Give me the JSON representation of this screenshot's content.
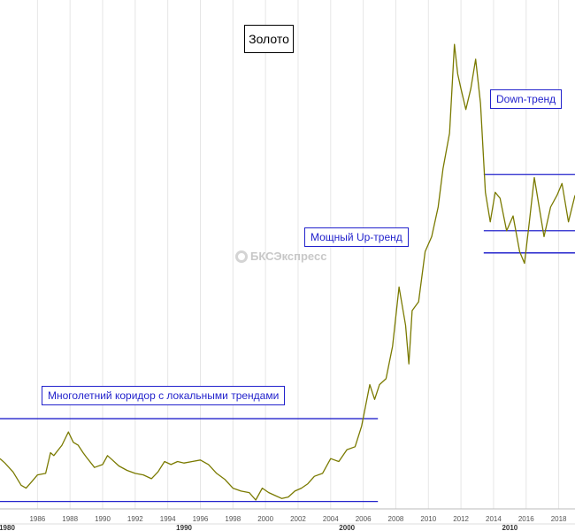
{
  "colors": {
    "price_line": "#7a7a00",
    "channel_lines": "#2222cc",
    "annotation_text": "#2222cc",
    "grid": "#e6e6e6",
    "watermark": "#c8c8c8"
  },
  "title": "Золото",
  "watermark": "БКСЭкспресс",
  "annotations": {
    "corridor": "Многолетний коридор с локальными трендами",
    "uptrend": "Мощный Up-тренд",
    "downtrend": "Down-тренд"
  },
  "chart_data": {
    "type": "line",
    "title": "Золото",
    "xlabel": "",
    "ylabel": "",
    "xlim": [
      1983.7,
      2019.0
    ],
    "ylim": [
      230,
      1950
    ],
    "grid": true,
    "x_ticks": [
      "1986",
      "1988",
      "1990",
      "1992",
      "1994",
      "1996",
      "1998",
      "2000",
      "2002",
      "2004",
      "2006",
      "2008",
      "2010",
      "2012",
      "2014",
      "2016",
      "2018"
    ],
    "decade_labels": [
      "1980",
      "1990",
      "2000",
      "2010"
    ],
    "series": [
      {
        "name": "",
        "points": [
          [
            1983.7,
            400
          ],
          [
            1984.0,
            385
          ],
          [
            1984.5,
            355
          ],
          [
            1985.0,
            310
          ],
          [
            1985.3,
            300
          ],
          [
            1985.7,
            325
          ],
          [
            1986.0,
            345
          ],
          [
            1986.5,
            350
          ],
          [
            1986.8,
            420
          ],
          [
            1987.0,
            410
          ],
          [
            1987.5,
            445
          ],
          [
            1987.9,
            490
          ],
          [
            1988.2,
            455
          ],
          [
            1988.5,
            445
          ],
          [
            1988.8,
            420
          ],
          [
            1989.0,
            405
          ],
          [
            1989.5,
            370
          ],
          [
            1990.0,
            380
          ],
          [
            1990.3,
            410
          ],
          [
            1990.6,
            395
          ],
          [
            1991.0,
            375
          ],
          [
            1991.5,
            360
          ],
          [
            1992.0,
            350
          ],
          [
            1992.5,
            345
          ],
          [
            1993.0,
            332
          ],
          [
            1993.4,
            355
          ],
          [
            1993.8,
            390
          ],
          [
            1994.2,
            380
          ],
          [
            1994.6,
            390
          ],
          [
            1995.0,
            385
          ],
          [
            1995.5,
            390
          ],
          [
            1996.0,
            395
          ],
          [
            1996.5,
            380
          ],
          [
            1997.0,
            350
          ],
          [
            1997.5,
            330
          ],
          [
            1998.0,
            300
          ],
          [
            1998.5,
            290
          ],
          [
            1999.0,
            285
          ],
          [
            1999.4,
            260
          ],
          [
            1999.8,
            300
          ],
          [
            2000.2,
            285
          ],
          [
            2000.6,
            275
          ],
          [
            2001.0,
            265
          ],
          [
            2001.4,
            270
          ],
          [
            2001.8,
            290
          ],
          [
            2002.2,
            300
          ],
          [
            2002.6,
            315
          ],
          [
            2003.0,
            340
          ],
          [
            2003.5,
            350
          ],
          [
            2004.0,
            400
          ],
          [
            2004.5,
            390
          ],
          [
            2005.0,
            430
          ],
          [
            2005.5,
            440
          ],
          [
            2005.9,
            510
          ],
          [
            2006.4,
            650
          ],
          [
            2006.7,
            600
          ],
          [
            2007.0,
            650
          ],
          [
            2007.4,
            670
          ],
          [
            2007.8,
            780
          ],
          [
            2008.2,
            980
          ],
          [
            2008.6,
            850
          ],
          [
            2008.8,
            720
          ],
          [
            2009.0,
            900
          ],
          [
            2009.4,
            930
          ],
          [
            2009.8,
            1100
          ],
          [
            2010.2,
            1150
          ],
          [
            2010.6,
            1250
          ],
          [
            2010.9,
            1380
          ],
          [
            2011.3,
            1500
          ],
          [
            2011.6,
            1800
          ],
          [
            2011.8,
            1700
          ],
          [
            2012.0,
            1650
          ],
          [
            2012.3,
            1580
          ],
          [
            2012.6,
            1650
          ],
          [
            2012.9,
            1750
          ],
          [
            2013.2,
            1600
          ],
          [
            2013.5,
            1300
          ],
          [
            2013.8,
            1200
          ],
          [
            2014.1,
            1300
          ],
          [
            2014.4,
            1280
          ],
          [
            2014.8,
            1170
          ],
          [
            2015.2,
            1220
          ],
          [
            2015.6,
            1100
          ],
          [
            2015.9,
            1060
          ],
          [
            2016.2,
            1200
          ],
          [
            2016.5,
            1350
          ],
          [
            2016.8,
            1250
          ],
          [
            2017.1,
            1150
          ],
          [
            2017.5,
            1250
          ],
          [
            2017.9,
            1290
          ],
          [
            2018.2,
            1330
          ],
          [
            2018.6,
            1200
          ],
          [
            2019.0,
            1290
          ]
        ]
      }
    ],
    "channels": [
      {
        "label": "Многолетний коридор с локальными трендами",
        "x": [
          1983.7,
          2006.9
        ],
        "y": [
          535,
          255
        ]
      },
      {
        "label": "Down-тренд",
        "x": [
          2013.4,
          2019.0
        ],
        "y": [
          1360,
          1170
        ]
      },
      {
        "x": [
          2013.4,
          2019.0
        ],
        "y": [
          1095,
          1095
        ]
      }
    ]
  }
}
